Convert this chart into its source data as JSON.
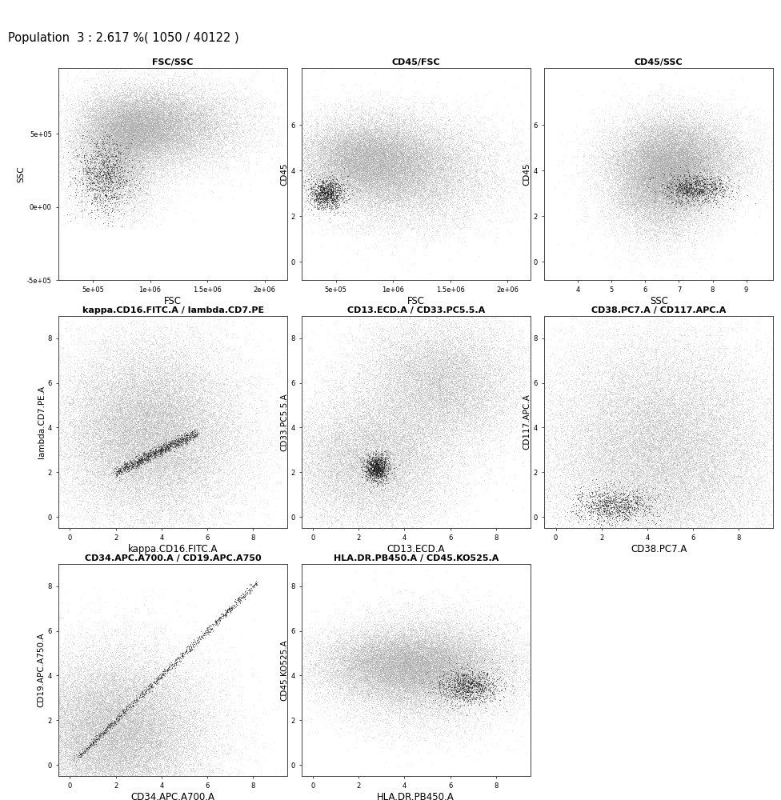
{
  "title": "Population  3 : 2.617 %( 1050 / 40122 )",
  "plots": [
    {
      "title": "FSC/SSC",
      "xlabel": "FSC",
      "ylabel": "SSC",
      "xlim": [
        200000,
        2200000
      ],
      "ylim": [
        -150000,
        950000
      ],
      "xticks": [
        500000,
        1000000,
        1500000,
        2000000
      ],
      "yticks": [
        -500000,
        0,
        500000
      ],
      "xticklabels": [
        "5e+05",
        "1e+06",
        "1.5e+06",
        "2e+06"
      ],
      "yticklabels": [
        "-5e+05",
        "0e+00",
        "5e+05"
      ],
      "type": "FSC_SSC"
    },
    {
      "title": "CD45/FSC",
      "xlabel": "FSC",
      "ylabel": "CD45",
      "xlim": [
        200000,
        2200000
      ],
      "ylim": [
        -0.8,
        8.5
      ],
      "xticks": [
        500000,
        1000000,
        1500000,
        2000000
      ],
      "yticks": [
        0,
        2,
        4,
        6
      ],
      "xticklabels": [
        "5e+05",
        "1e+06",
        "1.5e+06",
        "2e+06"
      ],
      "yticklabels": [
        "0",
        "2",
        "4",
        "6"
      ],
      "type": "CD45_FSC"
    },
    {
      "title": "CD45/SSC",
      "xlabel": "SSC",
      "ylabel": "CD45",
      "xlim": [
        3.0,
        9.8
      ],
      "ylim": [
        -0.8,
        8.5
      ],
      "xticks": [
        4,
        5,
        6,
        7,
        8,
        9
      ],
      "yticks": [
        0,
        2,
        4,
        6
      ],
      "xticklabels": [
        "4",
        "5",
        "6",
        "7",
        "8",
        "9"
      ],
      "yticklabels": [
        "0",
        "2",
        "4",
        "6"
      ],
      "type": "CD45_SSC"
    },
    {
      "title": "kappa.CD16.FITC.A / lambda.CD7.PE",
      "xlabel": "kappa.CD16.FITC.A",
      "ylabel": "lambda.CD7.PE.A",
      "xlim": [
        -0.5,
        9.5
      ],
      "ylim": [
        -0.5,
        9.0
      ],
      "xticks": [
        0,
        2,
        4,
        6,
        8
      ],
      "yticks": [
        0,
        2,
        4,
        6,
        8
      ],
      "xticklabels": [
        "0",
        "2",
        "4",
        "6",
        "8"
      ],
      "yticklabels": [
        "0",
        "2",
        "4",
        "6",
        "8"
      ],
      "type": "kappa_lambda"
    },
    {
      "title": "CD13.ECD.A / CD33.PC5.5.A",
      "xlabel": "CD13.ECD.A",
      "ylabel": "CD33.PC5.5.A",
      "xlim": [
        -0.5,
        9.5
      ],
      "ylim": [
        -0.5,
        9.0
      ],
      "xticks": [
        0,
        2,
        4,
        6,
        8
      ],
      "yticks": [
        0,
        2,
        4,
        6,
        8
      ],
      "xticklabels": [
        "0",
        "2",
        "4",
        "6",
        "8"
      ],
      "yticklabels": [
        "0",
        "2",
        "4",
        "6",
        "8"
      ],
      "type": "CD13_CD33"
    },
    {
      "title": "CD38.PC7.A / CD117.APC.A",
      "xlabel": "CD38.PC7.A",
      "ylabel": "CD117.APC.A",
      "xlim": [
        -0.5,
        9.5
      ],
      "ylim": [
        -0.5,
        9.0
      ],
      "xticks": [
        0,
        2,
        4,
        6,
        8
      ],
      "yticks": [
        0,
        2,
        4,
        6,
        8
      ],
      "xticklabels": [
        "0",
        "2",
        "4",
        "6",
        "8"
      ],
      "yticklabels": [
        "0",
        "2",
        "4",
        "6",
        "8"
      ],
      "type": "CD38_CD117"
    },
    {
      "title": "CD34.APC.A700.A / CD19.APC.A750",
      "xlabel": "CD34.APC.A700.A",
      "ylabel": "CD19.APC.A750.A",
      "xlim": [
        -0.5,
        9.5
      ],
      "ylim": [
        -0.5,
        9.0
      ],
      "xticks": [
        0,
        2,
        4,
        6,
        8
      ],
      "yticks": [
        0,
        2,
        4,
        6,
        8
      ],
      "xticklabels": [
        "0",
        "2",
        "4",
        "6",
        "8"
      ],
      "yticklabels": [
        "0",
        "2",
        "4",
        "6",
        "8"
      ],
      "type": "CD34_CD19"
    },
    {
      "title": "HLA.DR.PB450.A / CD45.KO525.A",
      "xlabel": "HLA.DR.PB450.A",
      "ylabel": "CD45.KO525.A",
      "xlim": [
        -0.5,
        9.5
      ],
      "ylim": [
        -0.5,
        9.0
      ],
      "xticks": [
        0,
        2,
        4,
        6,
        8
      ],
      "yticks": [
        0,
        2,
        4,
        6,
        8
      ],
      "xticklabels": [
        "0",
        "2",
        "4",
        "6",
        "8"
      ],
      "yticklabels": [
        "0",
        "2",
        "4",
        "6",
        "8"
      ],
      "type": "HLA_CD45"
    }
  ],
  "n_bg": 39072,
  "n_cluster": 1050,
  "bg_color": "#aaaaaa",
  "cluster_color": "#111111",
  "bg_alpha": 0.25,
  "cluster_alpha": 0.6,
  "bg_size": 0.5,
  "cluster_size": 0.7,
  "figure_bg": "#ffffff"
}
